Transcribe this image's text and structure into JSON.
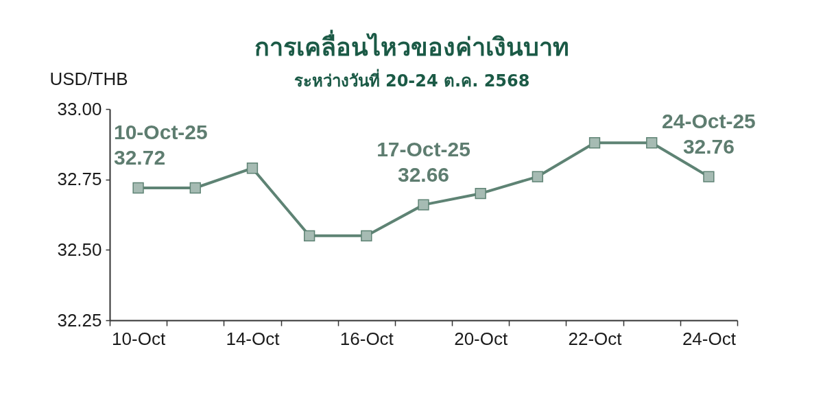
{
  "chart_data": {
    "type": "line",
    "title": "การเคลื่อนไหวของค่าเงินบาท",
    "subtitle": "ระหว่างวันที่ 20-24 ต.ค. 2568",
    "ylabel": "USD/THB",
    "categories": [
      "10-Oct",
      null,
      "14-Oct",
      null,
      "16-Oct",
      null,
      "20-Oct",
      null,
      "22-Oct",
      null,
      "24-Oct"
    ],
    "series": [
      {
        "color": "#5e8374",
        "values": [
          32.72,
          32.72,
          32.79,
          32.55,
          32.55,
          32.66,
          32.7,
          32.76,
          32.88,
          32.88,
          32.76
        ]
      }
    ],
    "ylim": [
      32.25,
      33
    ],
    "yticks": [
      32.25,
      {
        "value": 32.5,
        "label": "32.50"
      },
      32.75,
      {
        "value": 33,
        "label": "33.00"
      }
    ],
    "marker": "square",
    "line_style": "solid",
    "annotations": [
      {
        "text": "10-Oct-25\n32.72",
        "x": "10-Oct",
        "y": 32.72
      },
      {
        "text": "17-Oct-25\n32.66",
        "y": 32.66
      },
      {
        "text": "24-Oct-25\n32.76",
        "x": "24-Oct",
        "y": 32.76
      }
    ]
  }
}
